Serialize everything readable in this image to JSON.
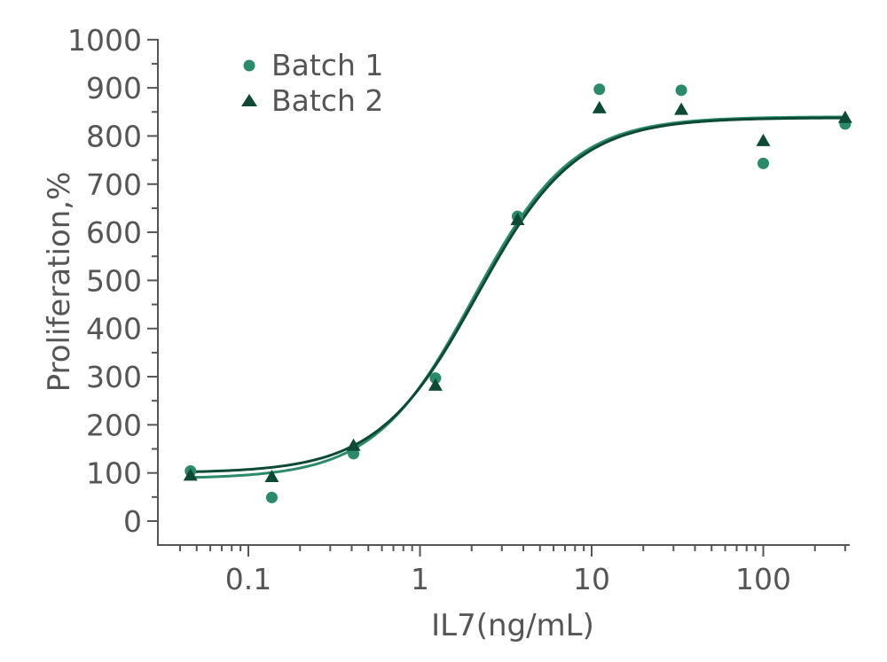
{
  "chart_data": {
    "type": "scatter",
    "title": "",
    "xlabel": "IL7(ng/mL)",
    "ylabel": "Proliferation,%",
    "xscale": "log",
    "xlim": [
      0.033,
      300
    ],
    "ylim": [
      -50,
      1000
    ],
    "x_tick_values": [
      0.1,
      1,
      10,
      100
    ],
    "x_tick_labels": [
      "0.1",
      "1",
      "10",
      "100"
    ],
    "y_tick_values": [
      0,
      100,
      200,
      300,
      400,
      500,
      600,
      700,
      800,
      900,
      1000
    ],
    "y_tick_labels": [
      "0",
      "100",
      "200",
      "300",
      "400",
      "500",
      "600",
      "700",
      "800",
      "900",
      "1000"
    ],
    "legend_position": "top-left",
    "series": [
      {
        "name": "Batch 1",
        "marker": "circle",
        "color": "#2a8a6a",
        "x": [
          0.046,
          0.137,
          0.41,
          1.23,
          3.7,
          11.1,
          33.3,
          100,
          300
        ],
        "y": [
          104,
          49,
          140,
          297,
          633,
          897,
          895,
          743,
          825
        ],
        "fit": {
          "bottom": 88,
          "top": 840,
          "ec50": 2.05,
          "hill": 1.5
        }
      },
      {
        "name": "Batch 2",
        "marker": "triangle",
        "color": "#0d4a35",
        "x": [
          0.046,
          0.137,
          0.41,
          1.23,
          3.7,
          11.1,
          33.3,
          100,
          300
        ],
        "y": [
          95,
          92,
          157,
          282,
          626,
          858,
          855,
          790,
          838
        ],
        "fit": {
          "bottom": 100,
          "top": 838,
          "ec50": 2.15,
          "hill": 1.5
        }
      }
    ]
  }
}
